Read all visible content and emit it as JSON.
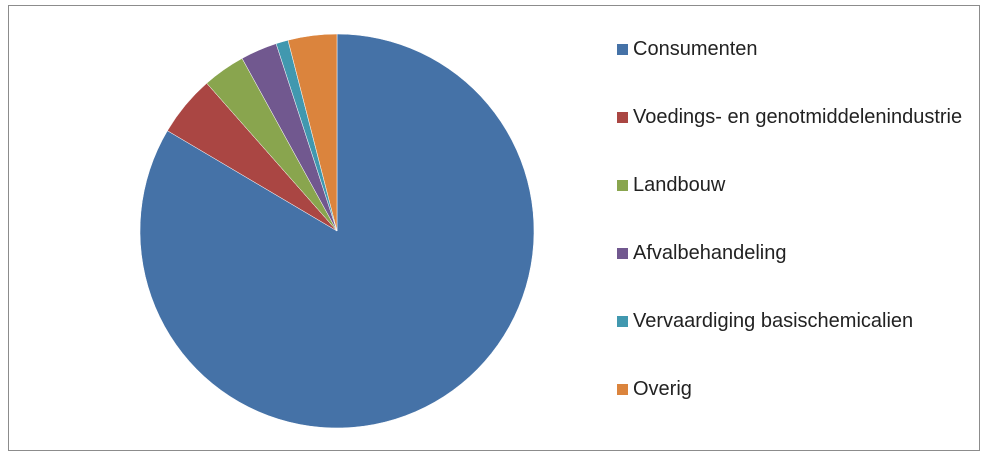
{
  "chart_data": {
    "type": "pie",
    "categories": [
      "Consumenten",
      "Voedings- en genotmiddelenindustrie",
      "Landbouw",
      "Afvalbehandeling",
      "Vervaardiging basischemicalien",
      "Overig"
    ],
    "values": [
      83.5,
      5,
      3.5,
      3,
      1,
      4
    ],
    "colors": [
      "#4572a7",
      "#aa4643",
      "#89a54e",
      "#71588f",
      "#4198af",
      "#db843d"
    ],
    "legend": "right"
  }
}
